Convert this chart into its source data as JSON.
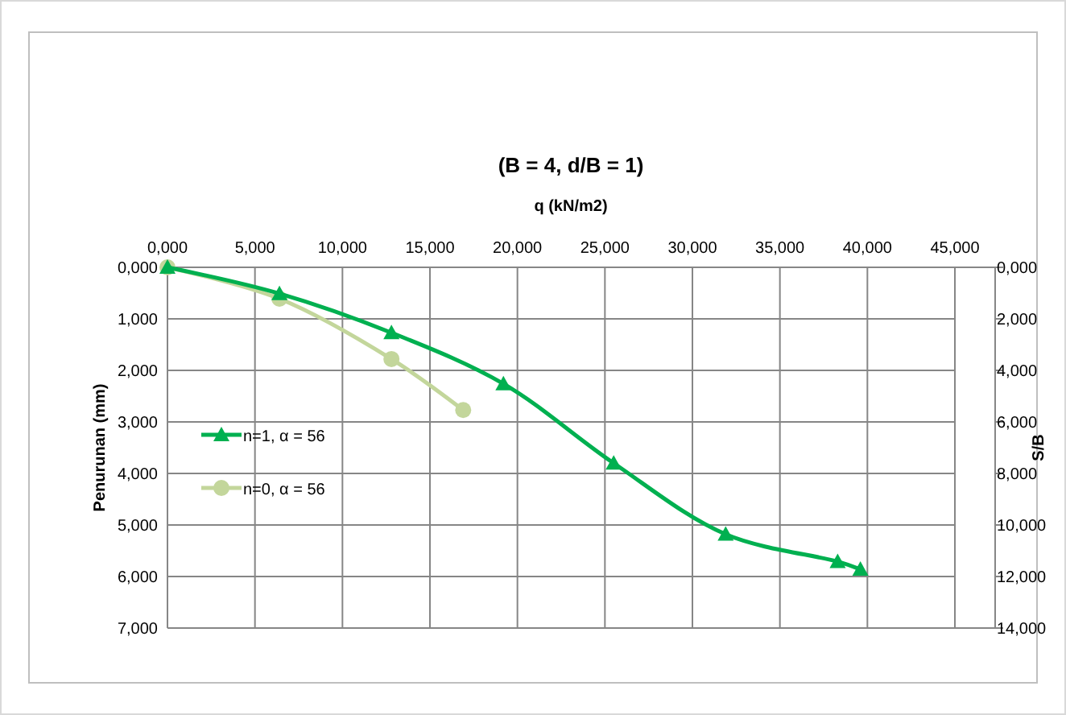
{
  "chart_data": {
    "type": "line",
    "title": "(B = 4, d/B = 1)",
    "xlabel": "q (kN/m2)",
    "ylabel": "Penurunan (mm)",
    "y2label": "S/B",
    "xlim": [
      0,
      45
    ],
    "xticks": [
      {
        "value": 0,
        "label": "0,000"
      },
      {
        "value": 5,
        "label": "5,000"
      },
      {
        "value": 10,
        "label": "10,000"
      },
      {
        "value": 15,
        "label": "15,000"
      },
      {
        "value": 20,
        "label": "20,000"
      },
      {
        "value": 25,
        "label": "25,000"
      },
      {
        "value": 30,
        "label": "30,000"
      },
      {
        "value": 35,
        "label": "35,000"
      },
      {
        "value": 40,
        "label": "40,000"
      },
      {
        "value": 45,
        "label": "45,000"
      }
    ],
    "ylim": [
      7,
      0
    ],
    "yticks": [
      {
        "value": 0,
        "label": "0,000"
      },
      {
        "value": 1,
        "label": "1,000"
      },
      {
        "value": 2,
        "label": "2,000"
      },
      {
        "value": 3,
        "label": "3,000"
      },
      {
        "value": 4,
        "label": "4,000"
      },
      {
        "value": 5,
        "label": "5,000"
      },
      {
        "value": 6,
        "label": "6,000"
      },
      {
        "value": 7,
        "label": "7,000"
      }
    ],
    "y2lim": [
      14,
      0
    ],
    "y2ticks": [
      {
        "value": 0,
        "label": "0,000"
      },
      {
        "value": 2,
        "label": "2,000"
      },
      {
        "value": 4,
        "label": "4,000"
      },
      {
        "value": 6,
        "label": "6,000"
      },
      {
        "value": 8,
        "label": "8,000"
      },
      {
        "value": 10,
        "label": "10,000"
      },
      {
        "value": 12,
        "label": "12,000"
      },
      {
        "value": 14,
        "label": "14,000"
      }
    ],
    "grid": true,
    "legend": "left",
    "line_style": "solid",
    "series": [
      {
        "name": "n=1, α = 56",
        "color": "#00b050",
        "marker": "triangle",
        "x": [
          0,
          6.4,
          12.8,
          19.2,
          25.5,
          31.9,
          38.3,
          39.6
        ],
        "values": [
          0,
          0.51,
          1.27,
          2.26,
          3.8,
          5.18,
          5.71,
          5.86
        ]
      },
      {
        "name": "n=0,  α = 56",
        "color": "#c3d69b",
        "marker": "circle",
        "x": [
          0,
          6.4,
          12.8,
          16.9
        ],
        "values": [
          0,
          0.61,
          1.78,
          2.77
        ]
      }
    ]
  }
}
